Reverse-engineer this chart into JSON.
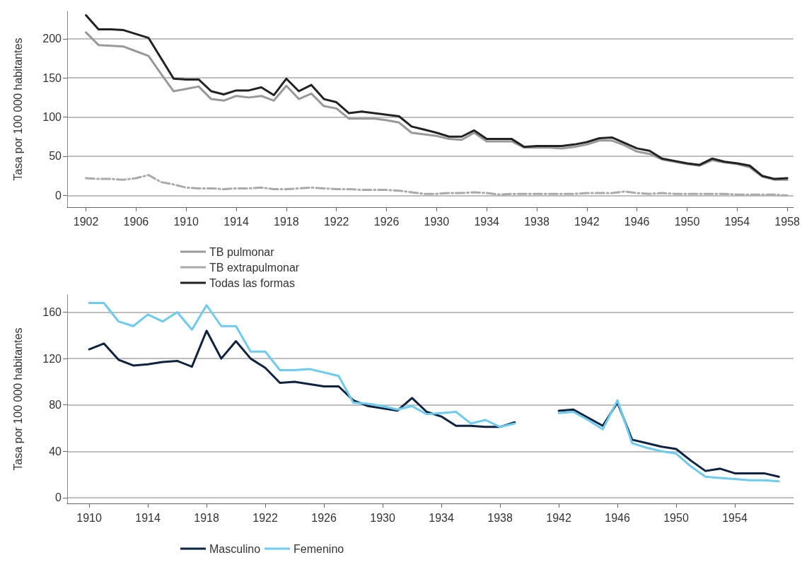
{
  "chart_data": [
    {
      "type": "line",
      "ylabel": "Tasa por 100 000 habitantes",
      "x": [
        1902,
        1903,
        1904,
        1905,
        1906,
        1907,
        1908,
        1909,
        1910,
        1911,
        1912,
        1913,
        1914,
        1915,
        1916,
        1917,
        1918,
        1919,
        1920,
        1921,
        1922,
        1923,
        1924,
        1925,
        1926,
        1927,
        1928,
        1929,
        1930,
        1931,
        1932,
        1933,
        1934,
        1935,
        1936,
        1937,
        1938,
        1939,
        1940,
        1941,
        1942,
        1943,
        1944,
        1945,
        1946,
        1947,
        1948,
        1949,
        1950,
        1951,
        1952,
        1953,
        1954,
        1955,
        1956,
        1957,
        1958
      ],
      "series": [
        {
          "name": "TB pulmonar",
          "color": "#999999",
          "values": [
            208,
            192,
            191,
            190,
            184,
            178,
            155,
            133,
            136,
            139,
            123,
            121,
            127,
            125,
            127,
            121,
            140,
            123,
            130,
            114,
            111,
            98,
            98,
            98,
            96,
            93,
            80,
            78,
            76,
            72,
            71,
            80,
            69,
            69,
            69,
            61,
            61,
            61,
            60,
            62,
            65,
            70,
            70,
            64,
            56,
            53,
            46,
            43,
            40,
            38,
            45,
            42,
            40,
            36,
            24,
            20,
            20
          ]
        },
        {
          "name": "TB extrapulmonar",
          "color": "#aaaaaa",
          "line_style": "dashed",
          "values": [
            22,
            21,
            21,
            20,
            22,
            26,
            17,
            14,
            10,
            9,
            9,
            8,
            9,
            9,
            10,
            8,
            8,
            9,
            10,
            9,
            8,
            8,
            7,
            7,
            7,
            6,
            4,
            2,
            2,
            3,
            3,
            4,
            3,
            1,
            2,
            2,
            2,
            2,
            2,
            2,
            3,
            3,
            3,
            5,
            3,
            2,
            3,
            2,
            2,
            2,
            2,
            2,
            1,
            1,
            1,
            1,
            0
          ]
        },
        {
          "name": "Todas las formas",
          "color": "#222222",
          "values": [
            230,
            212,
            212,
            211,
            206,
            201,
            175,
            149,
            148,
            148,
            133,
            129,
            134,
            134,
            138,
            128,
            149,
            133,
            141,
            123,
            119,
            105,
            107,
            105,
            103,
            101,
            88,
            84,
            80,
            75,
            75,
            83,
            72,
            72,
            72,
            62,
            63,
            63,
            63,
            65,
            68,
            73,
            74,
            67,
            60,
            57,
            47,
            44,
            41,
            39,
            47,
            43,
            41,
            38,
            25,
            21,
            22
          ]
        }
      ],
      "xlim": [
        1900.5,
        1958.5
      ],
      "xticks": [
        1902,
        1906,
        1910,
        1914,
        1918,
        1922,
        1926,
        1930,
        1934,
        1938,
        1942,
        1946,
        1950,
        1954,
        1958
      ],
      "ylim": [
        -15,
        235
      ],
      "yticks": [
        0,
        50,
        100,
        150,
        200
      ],
      "grid": "y",
      "legend": "bottom left",
      "line_style": "solid",
      "marker": "none"
    },
    {
      "type": "line",
      "ylabel": "Tasa por 100 000 habitantes",
      "x": [
        1910,
        1911,
        1912,
        1913,
        1914,
        1915,
        1916,
        1917,
        1918,
        1919,
        1920,
        1921,
        1922,
        1923,
        1924,
        1925,
        1926,
        1927,
        1928,
        1929,
        1930,
        1931,
        1932,
        1933,
        1934,
        1935,
        1936,
        1937,
        1938,
        1939,
        1940,
        1941,
        1942,
        1943,
        1944,
        1945,
        1946,
        1947,
        1948,
        1949,
        1950,
        1951,
        1952,
        1953,
        1954,
        1955,
        1956,
        1957
      ],
      "series": [
        {
          "name": "Masculino",
          "color": "#0d2340",
          "values": [
            128,
            133,
            119,
            114,
            115,
            117,
            118,
            113,
            144,
            120,
            135,
            120,
            112,
            99,
            100,
            98,
            96,
            96,
            84,
            79,
            77,
            75,
            86,
            74,
            70,
            62,
            62,
            61,
            61,
            65,
            null,
            null,
            75,
            76,
            69,
            62,
            82,
            50,
            47,
            44,
            42,
            32,
            23,
            25,
            21,
            21,
            21,
            18
          ]
        },
        {
          "name": "Femenino",
          "color": "#6ccbef",
          "values": [
            168,
            168,
            152,
            148,
            158,
            152,
            160,
            145,
            166,
            148,
            148,
            126,
            126,
            110,
            110,
            111,
            108,
            105,
            82,
            81,
            79,
            76,
            79,
            72,
            73,
            74,
            64,
            67,
            61,
            64,
            null,
            null,
            73,
            74,
            67,
            59,
            84,
            47,
            43,
            40,
            38,
            27,
            18,
            17,
            16,
            15,
            15,
            14
          ]
        }
      ],
      "xlim": [
        1908.5,
        1958
      ],
      "xticks": [
        1910,
        1914,
        1918,
        1922,
        1926,
        1930,
        1934,
        1938,
        1942,
        1946,
        1950,
        1954
      ],
      "ylim": [
        -5,
        175
      ],
      "yticks": [
        0,
        40,
        80,
        120,
        160
      ],
      "grid": "y",
      "legend": "bottom left",
      "line_style": "solid",
      "marker": "none"
    }
  ]
}
